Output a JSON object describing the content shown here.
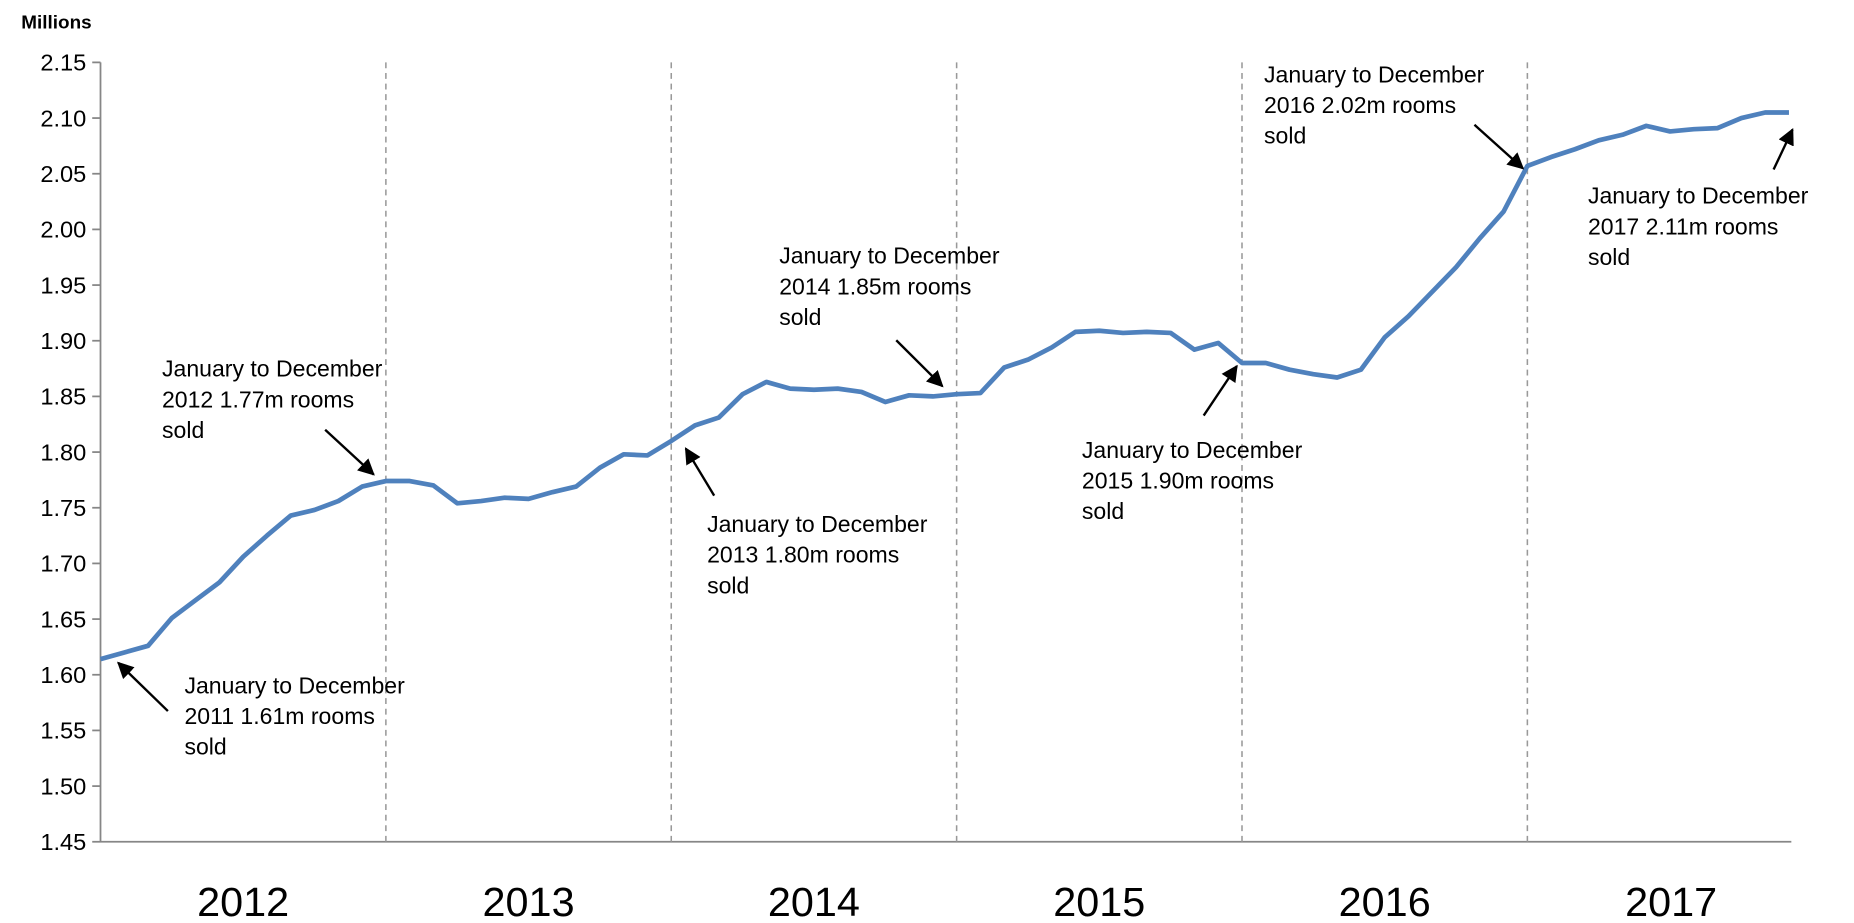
{
  "chart_data": {
    "type": "line",
    "y_axis_label": "Millions",
    "year_labels": [
      "2012",
      "2013",
      "2014",
      "2015",
      "2016",
      "2017"
    ],
    "series": [
      {
        "name": null,
        "color": "#4f81bd",
        "values": [
          1.614,
          1.62,
          1.626,
          1.651,
          1.667,
          1.683,
          1.706,
          1.725,
          1.743,
          1.748,
          1.756,
          1.769,
          1.774,
          1.774,
          1.77,
          1.754,
          1.756,
          1.759,
          1.758,
          1.764,
          1.769,
          1.786,
          1.798,
          1.797,
          1.81,
          1.824,
          1.831,
          1.852,
          1.863,
          1.857,
          1.856,
          1.857,
          1.854,
          1.845,
          1.851,
          1.85,
          1.852,
          1.853,
          1.876,
          1.883,
          1.894,
          1.908,
          1.909,
          1.907,
          1.908,
          1.907,
          1.892,
          1.898,
          1.88,
          1.88,
          1.874,
          1.87,
          1.867,
          1.874,
          1.903,
          1.922,
          1.944,
          1.966,
          1.992,
          2.016,
          2.057,
          2.065,
          2.072,
          2.08,
          2.085,
          2.093,
          2.088,
          2.09,
          2.091,
          2.1,
          2.105,
          2.105
        ]
      }
    ],
    "ylim": [
      1.45,
      2.15
    ],
    "yticks": [
      1.45,
      {
        "value": 1.5,
        "label": "1.50"
      },
      1.55,
      {
        "value": 1.6,
        "label": "1.60"
      },
      1.65,
      {
        "value": 1.7,
        "label": "1.70"
      },
      1.75,
      {
        "value": 1.8,
        "label": "1.80"
      },
      1.85,
      {
        "value": 1.9,
        "label": "1.90"
      },
      1.95,
      {
        "value": 2.0,
        "label": "2.00"
      },
      2.05,
      {
        "value": 2.1,
        "label": "2.10"
      },
      2.15
    ],
    "annotations": [
      [
        "January to December",
        "2011 1.61m rooms",
        "sold"
      ],
      [
        "January to December",
        "2012 1.77m rooms",
        "sold"
      ],
      [
        "January to December",
        "2013 1.80m rooms",
        "sold"
      ],
      [
        "January to December",
        "2014 1.85m rooms",
        "sold"
      ],
      [
        "January to December",
        "2015 1.90m rooms",
        "sold"
      ],
      [
        "January to December",
        "2016 2.02m rooms",
        "sold"
      ],
      [
        "January to December",
        "2017 2.11m rooms",
        "sold"
      ]
    ]
  }
}
